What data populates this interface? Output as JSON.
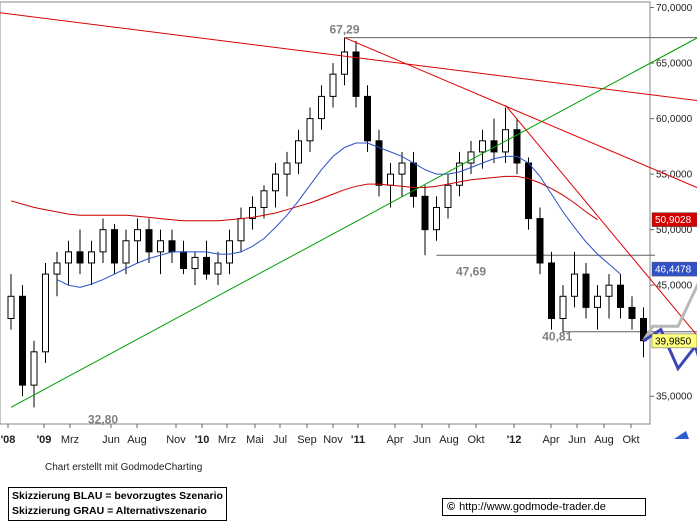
{
  "chart_data": {
    "type": "candlestick",
    "x_labels": [
      "'08",
      "'09",
      "Mrz",
      "Jun",
      "Aug",
      "Nov",
      "'10",
      "Mrz",
      "Mai",
      "Jul",
      "Sep",
      "Nov",
      "'11",
      "Apr",
      "Jun",
      "Aug",
      "Okt",
      "'12",
      "Apr",
      "Jun",
      "Aug",
      "Okt"
    ],
    "x_label_bold": [
      "'08",
      "'09",
      "'10",
      "'11",
      "'12"
    ],
    "y_ticks": [
      "70,0000",
      "65,0000",
      "60,0000",
      "55,0000",
      "50,0000",
      "45,0000",
      "35,0000"
    ],
    "y_tick_values": [
      70,
      65,
      60,
      55,
      50,
      45,
      35
    ],
    "ylim": [
      32.5,
      70.5
    ],
    "annotations": [
      "67,29",
      "47,69",
      "40,81",
      "32,80"
    ],
    "price_labels": [
      {
        "text": "50,9028",
        "color": "#d40000",
        "text_color": "#ffffff"
      },
      {
        "text": "46,4478",
        "color": "#3050c8",
        "text_color": "#ffffff"
      },
      {
        "text": "39,9850",
        "color": "#ffff80",
        "text_color": "#000000"
      }
    ],
    "candles": [
      [
        42,
        46,
        41,
        44
      ],
      [
        44,
        45,
        35,
        36
      ],
      [
        36,
        40,
        34,
        39
      ],
      [
        39,
        47,
        38,
        46
      ],
      [
        46,
        48,
        44,
        47
      ],
      [
        47,
        49,
        45,
        48
      ],
      [
        48,
        50,
        46,
        47
      ],
      [
        47,
        49,
        45,
        48
      ],
      [
        48,
        51,
        47,
        50
      ],
      [
        50,
        50.5,
        46,
        47
      ],
      [
        47,
        50,
        46,
        49
      ],
      [
        49,
        51,
        47,
        50
      ],
      [
        50,
        51,
        47,
        48
      ],
      [
        48,
        50,
        46,
        49
      ],
      [
        49,
        50,
        47,
        48
      ],
      [
        48,
        49,
        46,
        46.5
      ],
      [
        46.5,
        48,
        45,
        47.5
      ],
      [
        47.5,
        49,
        45.5,
        46
      ],
      [
        46,
        48,
        45,
        47
      ],
      [
        47,
        50,
        46,
        49
      ],
      [
        49,
        52,
        48,
        51
      ],
      [
        51,
        53,
        50,
        52
      ],
      [
        52,
        54,
        51,
        53.5
      ],
      [
        53.5,
        56,
        52,
        55
      ],
      [
        55,
        57,
        53,
        56
      ],
      [
        56,
        59,
        55,
        58
      ],
      [
        58,
        61,
        57,
        60
      ],
      [
        60,
        63,
        59,
        62
      ],
      [
        62,
        65,
        61,
        64
      ],
      [
        64,
        67.29,
        63,
        66
      ],
      [
        66,
        67,
        61,
        62
      ],
      [
        62,
        63,
        57,
        58
      ],
      [
        58,
        59,
        53,
        54
      ],
      [
        54,
        56,
        52,
        55
      ],
      [
        55,
        57,
        53,
        56
      ],
      [
        56,
        57,
        52,
        53
      ],
      [
        53,
        54,
        47.69,
        50
      ],
      [
        50,
        53,
        49,
        52
      ],
      [
        52,
        55,
        51,
        54
      ],
      [
        54,
        57,
        53,
        56
      ],
      [
        56,
        58,
        55,
        57
      ],
      [
        57,
        59,
        55.5,
        58
      ],
      [
        58,
        60,
        56,
        57
      ],
      [
        57,
        61,
        56,
        59
      ],
      [
        59,
        60,
        55,
        56
      ],
      [
        56,
        56.5,
        50,
        51
      ],
      [
        51,
        52,
        46,
        47
      ],
      [
        47,
        48,
        41,
        42
      ],
      [
        42,
        45,
        40.81,
        44
      ],
      [
        44,
        48,
        43,
        46
      ],
      [
        46,
        47,
        42,
        43
      ],
      [
        43,
        45,
        41,
        44
      ],
      [
        44,
        46,
        42,
        45
      ],
      [
        45,
        46,
        42,
        43
      ],
      [
        43,
        44,
        41,
        42
      ],
      [
        42,
        43,
        38.5,
        40
      ]
    ],
    "sma_blue": [
      null,
      null,
      null,
      null,
      45.5,
      45.0,
      44.8,
      45.1,
      45.5,
      46.0,
      46.5,
      47.0,
      47.4,
      47.7,
      48.0,
      48.0,
      48.0,
      48.0,
      47.8,
      47.8,
      48.0,
      48.5,
      49.2,
      50.2,
      51.3,
      52.6,
      54.0,
      55.4,
      56.6,
      57.4,
      57.8,
      57.8,
      57.4,
      57.0,
      56.6,
      56.0,
      55.4,
      55.0,
      55.0,
      55.2,
      55.6,
      56.0,
      56.4,
      56.6,
      56.6,
      56.0,
      54.8,
      53.2,
      51.6,
      50.2,
      48.9,
      47.8,
      46.9,
      46.0,
      null,
      null
    ],
    "sma_red": [
      52.6,
      52.3,
      52.0,
      51.8,
      51.6,
      51.4,
      51.3,
      51.3,
      51.3,
      51.3,
      51.3,
      51.2,
      51.1,
      51.0,
      50.9,
      50.8,
      50.8,
      50.8,
      50.8,
      50.9,
      51.0,
      51.1,
      51.3,
      51.5,
      51.8,
      52.1,
      52.4,
      52.8,
      53.2,
      53.6,
      53.9,
      54.1,
      54.1,
      54.0,
      53.9,
      53.8,
      53.8,
      53.9,
      54.1,
      54.3,
      54.5,
      54.6,
      54.7,
      54.8,
      54.8,
      54.6,
      54.2,
      53.7,
      53.1,
      52.4,
      51.6,
      50.9,
      null,
      null,
      null,
      null
    ],
    "trendlines": [
      {
        "color": "#dd0000",
        "points": [
          [
            -3,
            69.8
          ],
          [
            66,
            60.8
          ]
        ]
      },
      {
        "color": "#dd0000",
        "points": [
          [
            29,
            67.29
          ],
          [
            66,
            51.0
          ]
        ]
      },
      {
        "color": "#dd0000",
        "points": [
          [
            43,
            61.2
          ],
          [
            66,
            32.6
          ]
        ]
      },
      {
        "color": "#00a000",
        "points": [
          [
            0,
            34.0
          ],
          [
            66,
            70.8
          ]
        ]
      }
    ],
    "support_lines": [
      {
        "color": "#606060",
        "points": [
          [
            29,
            67.29
          ],
          [
            62,
            67.29
          ]
        ]
      },
      {
        "color": "#606060",
        "points": [
          [
            37,
            47.69
          ],
          [
            56,
            47.69
          ]
        ]
      },
      {
        "color": "#606060",
        "points": [
          [
            48,
            40.81
          ],
          [
            66,
            40.81
          ]
        ]
      }
    ],
    "scenario_blue": [
      [
        55,
        40.0
      ],
      [
        56.5,
        41.0
      ],
      [
        58,
        37.5
      ],
      [
        59.5,
        39.5
      ],
      [
        61.5,
        33.0
      ]
    ],
    "scenario_gray": [
      [
        55,
        40.0
      ],
      [
        55.8,
        41.3
      ],
      [
        58,
        41.3
      ],
      [
        60.5,
        46.8
      ]
    ]
  },
  "credit": "Chart erstellt mit GodmodeCharting",
  "legend": [
    "Skizzierung BLAU = bevorzugtes Szenario",
    "Skizzierung GRAU = Alternativszenario"
  ],
  "url": "http://www.godmode-trader.de",
  "url_symbol": "©"
}
